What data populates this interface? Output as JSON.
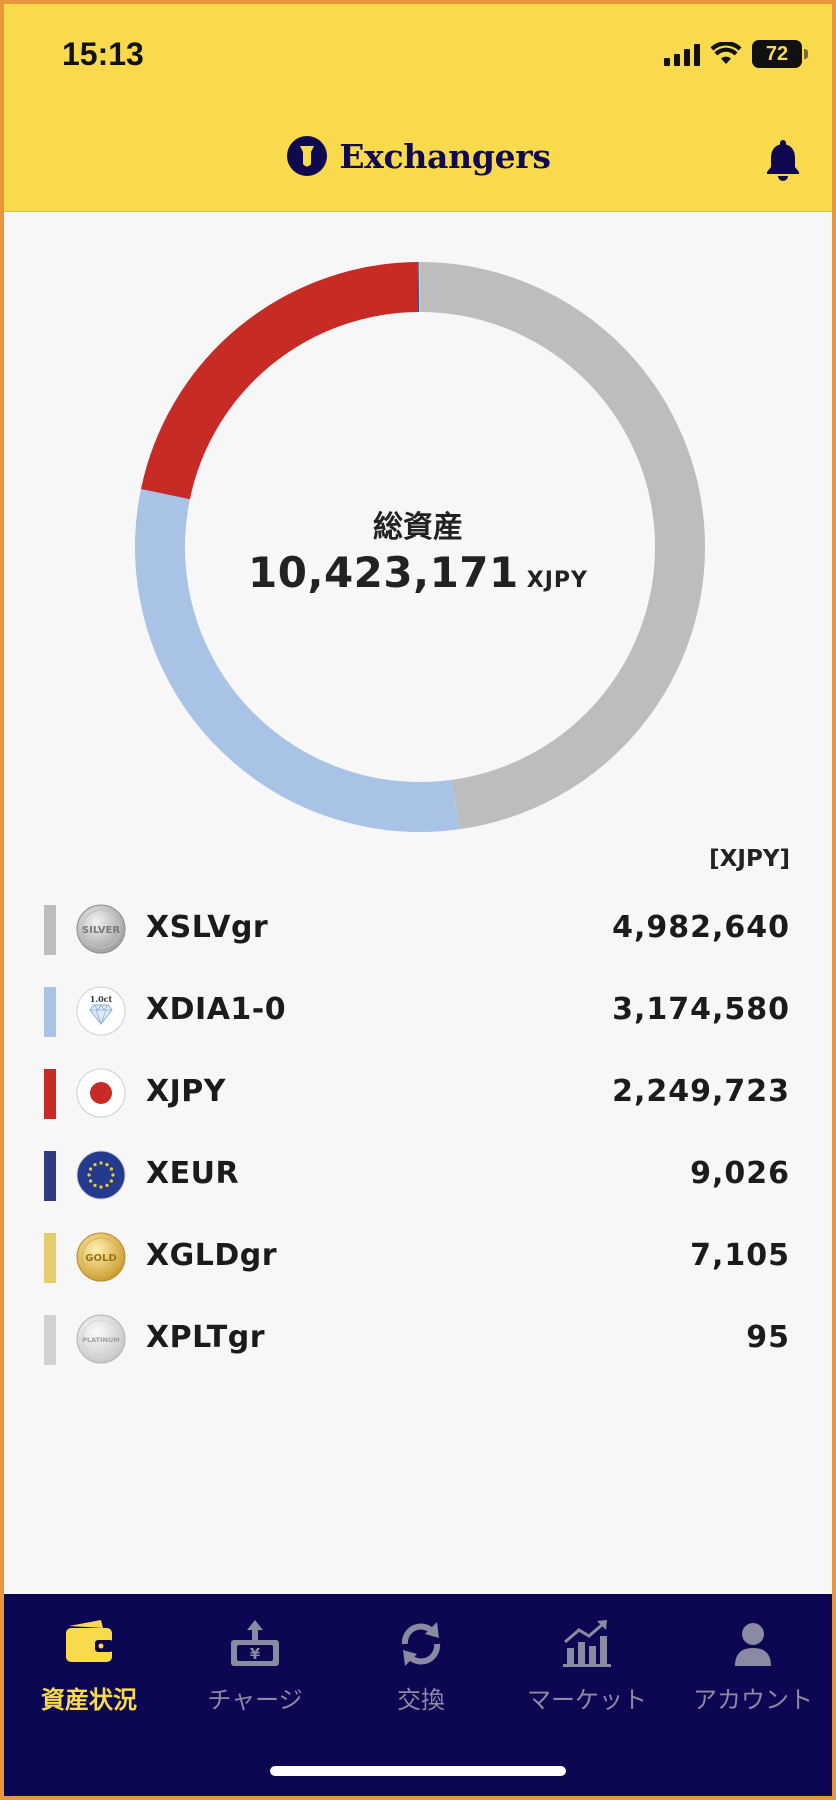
{
  "status_bar": {
    "time": "15:13",
    "battery": "72"
  },
  "header": {
    "app_name": "Exchangers",
    "icons": [
      "bell-icon"
    ]
  },
  "summary": {
    "title": "総資産",
    "total": "10,423,171",
    "unit": "XJPY"
  },
  "chart_data": {
    "type": "pie",
    "donut": true,
    "unit": "XJPY",
    "categories": [
      "XSLVgr",
      "XDIA1-0",
      "XJPY",
      "XEUR",
      "XGLDgr",
      "XPLTgr"
    ],
    "values": [
      4982640,
      3174580,
      2249723,
      9026,
      7105,
      95
    ],
    "colors": [
      "#bdbdbd",
      "#a9c3e6",
      "#c72b26",
      "#2e3a82",
      "#e6cc6a",
      "#d2d2d2"
    ]
  },
  "list": {
    "unit_note": "[XJPY]",
    "assets": [
      {
        "name": "XSLVgr",
        "value": "4,982,640",
        "color": "#bdbdbd",
        "icon": "silver-coin-icon"
      },
      {
        "name": "XDIA1-0",
        "value": "3,174,580",
        "color": "#a9c3e6",
        "icon": "diamond-icon"
      },
      {
        "name": "XJPY",
        "value": "2,249,723",
        "color": "#c72b26",
        "icon": "japan-flag-icon"
      },
      {
        "name": "XEUR",
        "value": "9,026",
        "color": "#2e3a82",
        "icon": "eu-flag-icon"
      },
      {
        "name": "XGLDgr",
        "value": "7,105",
        "color": "#e6cc6a",
        "icon": "gold-coin-icon"
      },
      {
        "name": "XPLTgr",
        "value": "95",
        "color": "#d2d2d2",
        "icon": "platinum-coin-icon"
      }
    ]
  },
  "coin_text": {
    "silver": "SILVER",
    "diamond": "1.0ct",
    "gold": "GOLD",
    "platinum": "PLATINUM"
  },
  "tabs": [
    {
      "label": "資産状況",
      "icon": "wallet-icon",
      "active": true
    },
    {
      "label": "チャージ",
      "icon": "charge-icon",
      "active": false
    },
    {
      "label": "交換",
      "icon": "exchange-icon",
      "active": false
    },
    {
      "label": "マーケット",
      "icon": "market-chart-icon",
      "active": false
    },
    {
      "label": "アカウント",
      "icon": "account-icon",
      "active": false
    }
  ],
  "colors": {
    "header_bg": "#f9da4c",
    "brand_navy": "#0f0a4f",
    "tabbar_bg": "#0c0752",
    "tab_active": "#f9da4c",
    "tab_inactive": "#8a8aa3"
  }
}
